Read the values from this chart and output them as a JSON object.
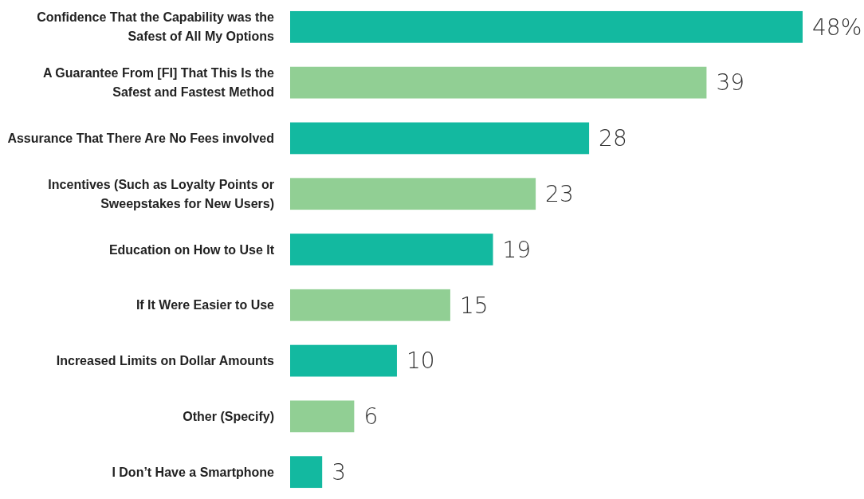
{
  "chart_data": {
    "type": "bar",
    "orientation": "horizontal",
    "categories": [
      "Confidence That the Capability was the Safest of All My Options",
      "A Guarantee From [FI] That This Is the Safest and Fastest Method",
      "Assurance That There Are No Fees involved",
      "Incentives (Such as Loyalty Points or Sweepstakes for New Users)",
      "Education on How to Use It",
      "If It Were Easier to Use",
      "Increased Limits on Dollar Amounts",
      "Other (Specify)",
      "I Don’t Have a Smartphone"
    ],
    "values": [
      48,
      39,
      28,
      23,
      19,
      15,
      10,
      6,
      3
    ],
    "colors": [
      "#13b9a0",
      "#91cf94",
      "#13b9a0",
      "#91cf94",
      "#13b9a0",
      "#91cf94",
      "#13b9a0",
      "#91cf94",
      "#13b9a0"
    ],
    "value_labels": [
      "48%",
      "39",
      "28",
      "23",
      "19",
      "15",
      "10",
      "6",
      "3"
    ]
  }
}
